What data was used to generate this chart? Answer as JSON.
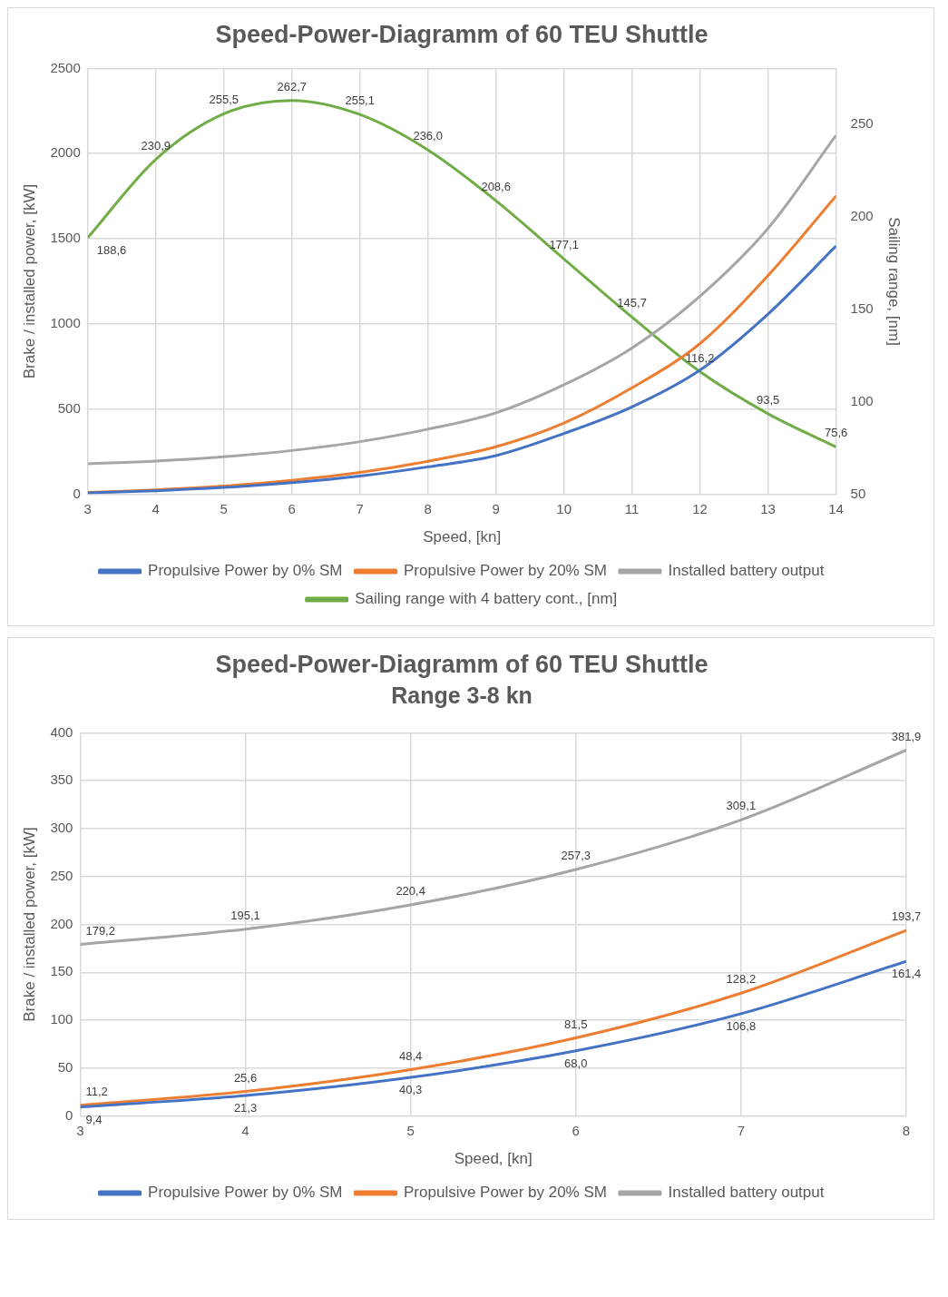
{
  "chart_data": [
    {
      "type": "line",
      "title": "Speed-Power-Diagramm of 60 TEU Shuttle",
      "xlabel": "Speed, [kn]",
      "ylabel": "Brake / installed power, [kW]",
      "y2label": "Sailing range, [nm]",
      "x": [
        3,
        4,
        5,
        6,
        7,
        8,
        9,
        10,
        11,
        12,
        13,
        14
      ],
      "xlim": [
        3,
        14
      ],
      "xticks": [
        3,
        4,
        5,
        6,
        7,
        8,
        9,
        10,
        11,
        12,
        13,
        14
      ],
      "ylim": [
        0,
        2500
      ],
      "yticks": [
        0,
        500,
        1000,
        1500,
        2000,
        2500
      ],
      "y2lim": [
        50,
        280
      ],
      "y2ticks": [
        50,
        100,
        150,
        200,
        250
      ],
      "grid": true,
      "legend": "bottom",
      "marker": "none",
      "series": [
        {
          "name": "Propulsive Power by 0% SM",
          "color": "#4472c4",
          "values": [
            9,
            21,
            40,
            68,
            107,
            161,
            227,
            357,
            513,
            729,
            1058,
            1457
          ]
        },
        {
          "name": "Propulsive Power by 20% SM",
          "color": "#ed7d31",
          "values": [
            11,
            26,
            48,
            82,
            128,
            194,
            279,
            418,
            625,
            885,
            1284,
            1751
          ]
        },
        {
          "name": "Installed battery output",
          "color": "#a5a5a5",
          "values": [
            179,
            195,
            220,
            257,
            309,
            382,
            478,
            643,
            859,
            1163,
            1561,
            2107
          ]
        },
        {
          "name": "Sailing range with 4 battery cont., [nm]",
          "color": "#70ad47",
          "axis": "y2",
          "values": [
            188.6,
            230.9,
            255.5,
            262.7,
            255.1,
            236.0,
            208.6,
            177.1,
            145.7,
            116.2,
            93.5,
            75.6
          ],
          "value_labels": [
            "188,6",
            "230,9",
            "255,5",
            "262,7",
            "255,1",
            "236,0",
            "208,6",
            "177,1",
            "145,7",
            "116,2",
            "93,5",
            "75,6"
          ]
        }
      ]
    },
    {
      "type": "line",
      "title": "Speed-Power-Diagramm of 60 TEU Shuttle",
      "subtitle": "Range 3-8 kn",
      "xlabel": "Speed, [kn]",
      "ylabel": "Brake / installed power, [kW]",
      "x": [
        3,
        4,
        5,
        6,
        7,
        8
      ],
      "xlim": [
        3,
        8
      ],
      "xticks": [
        3,
        4,
        5,
        6,
        7,
        8
      ],
      "ylim": [
        0,
        400
      ],
      "yticks": [
        0,
        50,
        100,
        150,
        200,
        250,
        300,
        350,
        400
      ],
      "grid": true,
      "legend": "bottom",
      "marker": "none",
      "series": [
        {
          "name": "Propulsive Power by 0% SM",
          "color": "#4472c4",
          "values": [
            9.4,
            21.3,
            40.3,
            68.0,
            106.8,
            161.4
          ],
          "value_labels": [
            "9,4",
            "21,3",
            "40,3",
            "68,0",
            "106,8",
            "161,4"
          ]
        },
        {
          "name": "Propulsive Power by 20% SM",
          "color": "#ed7d31",
          "values": [
            11.2,
            25.6,
            48.4,
            81.5,
            128.2,
            193.7
          ],
          "value_labels": [
            "11,2",
            "25,6",
            "48,4",
            "81,5",
            "128,2",
            "193,7"
          ]
        },
        {
          "name": "Installed battery output",
          "color": "#a5a5a5",
          "values": [
            179.2,
            195.1,
            220.4,
            257.3,
            309.1,
            381.9
          ],
          "value_labels": [
            "179,2",
            "195,1",
            "220,4",
            "257,3",
            "309,1",
            "381,9"
          ]
        }
      ]
    }
  ]
}
